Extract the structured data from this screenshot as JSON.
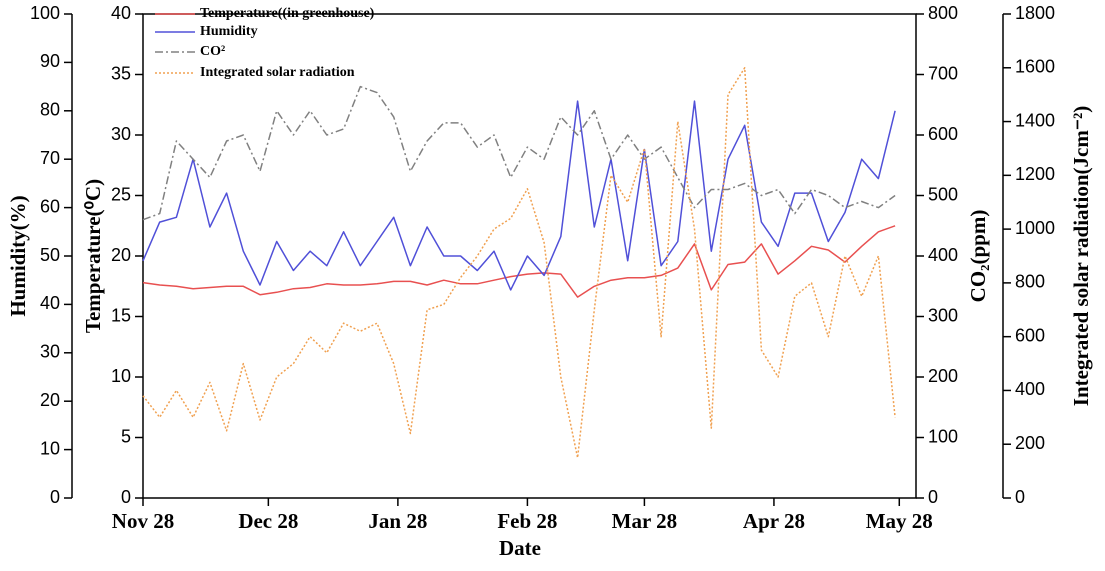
{
  "chart_data": {
    "type": "line",
    "xlabel": "Date",
    "x": [
      0,
      4,
      8,
      12,
      16,
      20,
      24,
      28,
      32,
      36,
      40,
      44,
      48,
      52,
      56,
      60,
      64,
      68,
      72,
      76,
      80,
      84,
      88,
      92,
      96,
      100,
      104,
      108,
      112,
      116,
      120,
      124,
      128,
      132,
      136,
      140,
      144,
      148,
      152,
      156,
      160,
      164,
      168,
      172,
      176,
      180
    ],
    "xlim": [
      0,
      185
    ],
    "xticks": [
      {
        "value": 0,
        "label": "Nov 28"
      },
      {
        "value": 30,
        "label": "Dec 28"
      },
      {
        "value": 61,
        "label": "Jan 28"
      },
      {
        "value": 92,
        "label": "Feb 28"
      },
      {
        "value": 120,
        "label": "Mar 28"
      },
      {
        "value": 151,
        "label": "Apr 28"
      },
      {
        "value": 181,
        "label": "May 28"
      }
    ],
    "ylabel": "Humidity(%)",
    "ylim": [
      0,
      100
    ],
    "yticks": [
      0,
      10,
      20,
      30,
      40,
      50,
      60,
      70,
      80,
      90,
      100
    ],
    "y2label": "Temperature(⁰C)",
    "y2lim": [
      0,
      40
    ],
    "y2ticks": [
      0,
      5,
      10,
      15,
      20,
      25,
      30,
      35,
      40
    ],
    "y3label": "CO₂(ppm)",
    "y3lim": [
      0,
      800
    ],
    "y3ticks": [
      0,
      100,
      200,
      300,
      400,
      500,
      600,
      700,
      800
    ],
    "y4label": "Integrated solar radiation(Jcm⁻²)",
    "y4lim": [
      0,
      1800
    ],
    "y4ticks": [
      0,
      200,
      400,
      600,
      800,
      1000,
      1200,
      1400,
      1600,
      1800
    ],
    "series": [
      {
        "name": "Temperature((in greenhouse)",
        "color": "#e85050",
        "line_style": "solid",
        "axis": "y2",
        "values": [
          17.8,
          17.6,
          17.5,
          17.3,
          17.4,
          17.5,
          17.5,
          16.8,
          17.0,
          17.3,
          17.4,
          17.7,
          17.6,
          17.6,
          17.7,
          17.9,
          17.9,
          17.6,
          18.0,
          17.7,
          17.7,
          18.0,
          18.3,
          18.5,
          18.6,
          18.5,
          16.6,
          17.5,
          18.0,
          18.2,
          18.2,
          18.4,
          19.0,
          21.0,
          17.2,
          19.3,
          19.5,
          21.0,
          18.5,
          19.6,
          20.8,
          20.5,
          19.5,
          20.8,
          22.0,
          22.5
        ]
      },
      {
        "name": "Humidity",
        "color": "#5050d8",
        "line_style": "solid",
        "axis": "y",
        "values": [
          49,
          57,
          58,
          70,
          56,
          63,
          51,
          44,
          53,
          47,
          51,
          48,
          55,
          48,
          53,
          58,
          48,
          56,
          50,
          50,
          47,
          51,
          43,
          50,
          46,
          54,
          82,
          56,
          70,
          49,
          72,
          48,
          53,
          82,
          51,
          70,
          77,
          57,
          52,
          63,
          63,
          53,
          59,
          70,
          66,
          80
        ]
      },
      {
        "name": "CO²",
        "color": "#808080",
        "line_style": "dashdot",
        "axis": "y3",
        "values": [
          460,
          470,
          590,
          560,
          530,
          590,
          600,
          540,
          640,
          600,
          640,
          600,
          610,
          680,
          670,
          630,
          540,
          590,
          620,
          620,
          580,
          600,
          530,
          580,
          560,
          630,
          600,
          640,
          560,
          600,
          560,
          580,
          530,
          480,
          510,
          510,
          520,
          500,
          510,
          470,
          510,
          500,
          480,
          490,
          480,
          500
        ]
      },
      {
        "name": "Integrated solar radiation",
        "color": "#f0a050",
        "line_style": "dotted",
        "axis": "y4",
        "values": [
          380,
          300,
          400,
          300,
          430,
          250,
          500,
          290,
          450,
          500,
          600,
          540,
          650,
          620,
          650,
          500,
          240,
          700,
          720,
          820,
          900,
          1000,
          1040,
          1150,
          950,
          450,
          150,
          700,
          1200,
          1100,
          1300,
          600,
          1400,
          1000,
          260,
          1500,
          1600,
          550,
          450,
          750,
          800,
          600,
          900,
          750,
          900,
          300
        ]
      }
    ]
  }
}
